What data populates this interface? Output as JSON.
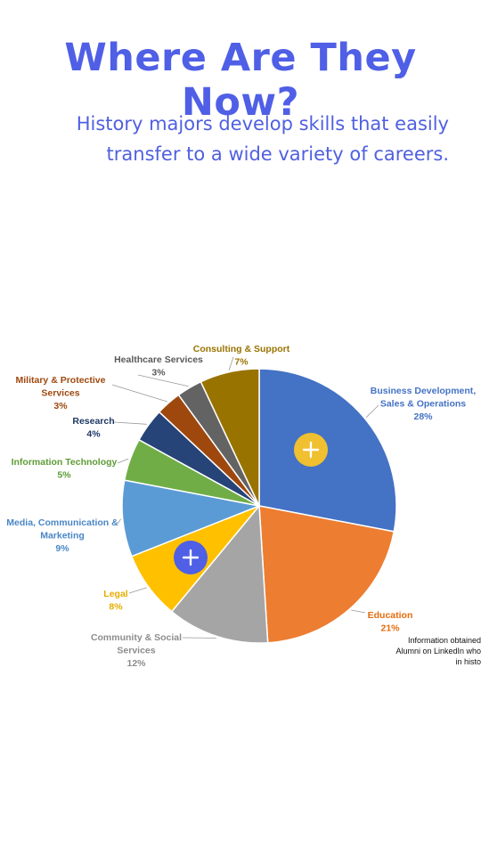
{
  "header": {
    "title": "Where Are They Now?",
    "subtitle_line1": "History majors develop skills that easily",
    "subtitle_line2": "transfer to a wide variety of careers."
  },
  "chart_data": {
    "type": "pie",
    "start_angle_deg": 0,
    "direction": "clockwise",
    "slices": [
      {
        "lines": [
          "Business Development,",
          "Sales & Operations"
        ],
        "value": 28,
        "pct_label": "28%",
        "color": "#4472c4",
        "label_color": "#4472c4"
      },
      {
        "lines": [
          "Education"
        ],
        "value": 21,
        "pct_label": "21%",
        "color": "#ed7d31",
        "label_color": "#e46c0a"
      },
      {
        "lines": [
          "Community & Social",
          "Services"
        ],
        "value": 12,
        "pct_label": "12%",
        "color": "#a5a5a5",
        "label_color": "#8c8c8c"
      },
      {
        "lines": [
          "Legal"
        ],
        "value": 8,
        "pct_label": "8%",
        "color": "#ffc000",
        "label_color": "#e6ac00"
      },
      {
        "lines": [
          "Media, Communication &",
          "Marketing"
        ],
        "value": 9,
        "pct_label": "9%",
        "color": "#5b9bd5",
        "label_color": "#4a86c5"
      },
      {
        "lines": [
          "Information Technology"
        ],
        "value": 5,
        "pct_label": "5%",
        "color": "#70ad47",
        "label_color": "#5e9b35"
      },
      {
        "lines": [
          "Research"
        ],
        "value": 4,
        "pct_label": "4%",
        "color": "#264478",
        "label_color": "#1f3864"
      },
      {
        "lines": [
          "Military & Protective",
          "Services"
        ],
        "value": 3,
        "pct_label": "3%",
        "color": "#9e480e",
        "label_color": "#9e480e"
      },
      {
        "lines": [
          "Healthcare Services"
        ],
        "value": 3,
        "pct_label": "3%",
        "color": "#636363",
        "label_color": "#595959"
      },
      {
        "lines": [
          "Consulting & Support"
        ],
        "value": 7,
        "pct_label": "7%",
        "color": "#997300",
        "label_color": "#997300"
      }
    ]
  },
  "hotspots": [
    {
      "name": "hotspot-business",
      "symbol": "+",
      "color": "#f0c030"
    },
    {
      "name": "hotspot-legal",
      "symbol": "+",
      "color": "#4f5fe6"
    }
  ],
  "footnote": {
    "line1": "Information obtained",
    "line2": "Alumni on LinkedIn who",
    "line3": "in histo"
  }
}
